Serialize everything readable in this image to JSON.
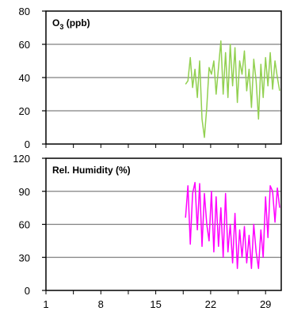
{
  "chart_data": [
    {
      "type": "line",
      "title": "O",
      "title_sub": "3",
      "title_suffix": " (ppb)",
      "color": "#92d050",
      "xlim": [
        1,
        31
      ],
      "ylim": [
        0,
        80
      ],
      "yticks": [
        0,
        20,
        40,
        60,
        80
      ],
      "grid": "horizontal",
      "series": [
        {
          "x": [
            18.8,
            19.1,
            19.4,
            19.7,
            20.0,
            20.3,
            20.6,
            20.9,
            21.2,
            21.5,
            21.8,
            22.1,
            22.4,
            22.7,
            23.0,
            23.3,
            23.6,
            23.9,
            24.2,
            24.5,
            24.8,
            25.1,
            25.4,
            25.7,
            26.0,
            26.3,
            26.6,
            26.9,
            27.2,
            27.5,
            27.8,
            28.1,
            28.4,
            28.7,
            29.0,
            29.3,
            29.6,
            29.9,
            30.2,
            30.5,
            30.8
          ],
          "values": [
            36,
            38,
            52,
            34,
            45,
            28,
            50,
            15,
            4,
            22,
            46,
            42,
            50,
            30,
            46,
            62,
            30,
            55,
            28,
            60,
            35,
            58,
            25,
            50,
            42,
            56,
            32,
            45,
            22,
            51,
            38,
            15,
            48,
            28,
            52,
            35,
            55,
            33,
            50,
            40,
            32
          ]
        }
      ]
    },
    {
      "type": "line",
      "title": "Rel. Humidity (%)",
      "color": "#ff00ff",
      "xlim": [
        1,
        31
      ],
      "ylim": [
        0,
        120
      ],
      "yticks": [
        0,
        30,
        60,
        90,
        120
      ],
      "xticks": [
        1,
        8,
        15,
        22,
        29
      ],
      "grid": "horizontal",
      "series": [
        {
          "x": [
            18.8,
            19.1,
            19.4,
            19.7,
            20.0,
            20.3,
            20.6,
            20.9,
            21.2,
            21.5,
            21.8,
            22.1,
            22.4,
            22.7,
            23.0,
            23.3,
            23.6,
            23.9,
            24.2,
            24.5,
            24.8,
            25.1,
            25.4,
            25.7,
            26.0,
            26.3,
            26.6,
            26.9,
            27.2,
            27.5,
            27.8,
            28.1,
            28.4,
            28.7,
            29.0,
            29.3,
            29.6,
            29.9,
            30.2,
            30.5,
            30.8
          ],
          "values": [
            66,
            95,
            42,
            88,
            98,
            55,
            97,
            40,
            88,
            60,
            45,
            90,
            35,
            85,
            40,
            75,
            30,
            88,
            35,
            60,
            25,
            70,
            20,
            55,
            30,
            58,
            25,
            50,
            20,
            60,
            35,
            20,
            55,
            30,
            85,
            48,
            95,
            90,
            62,
            93,
            75
          ]
        }
      ]
    }
  ]
}
